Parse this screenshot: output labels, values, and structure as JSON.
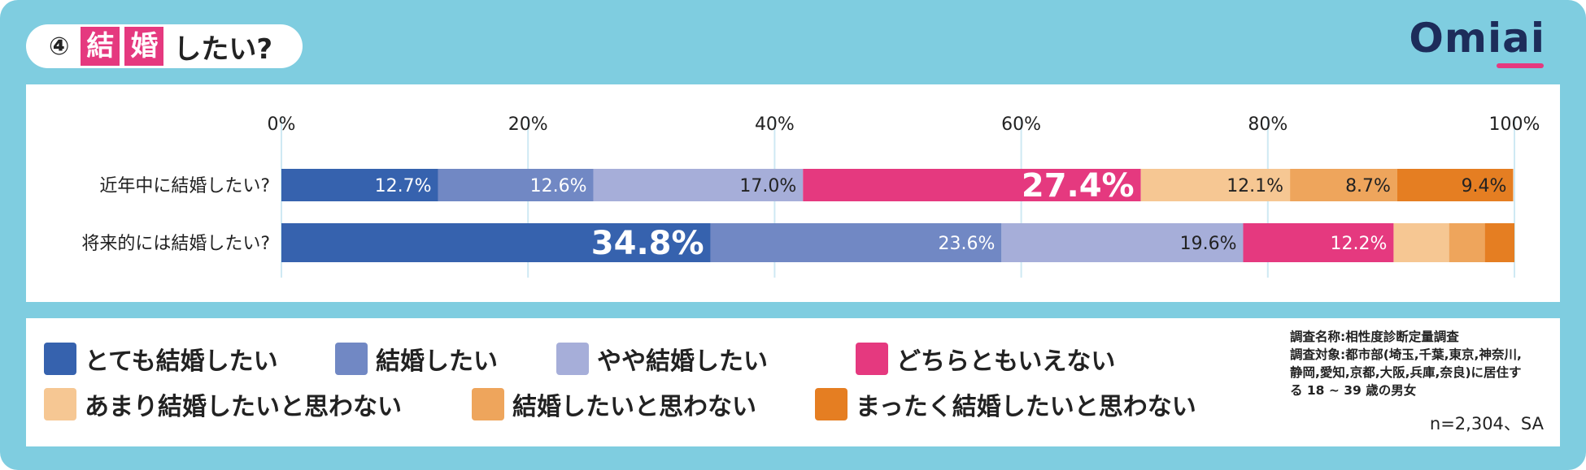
{
  "title": {
    "number": "④",
    "char1": "結",
    "char2": "婚",
    "rest": "したい?"
  },
  "logo": "Omiai",
  "colors": {
    "frame": "#7fcde0",
    "series": [
      "#3662ae",
      "#7188c4",
      "#a6aed9",
      "#e5397f",
      "#f6c793",
      "#eea55c",
      "#e57e22"
    ],
    "grid": "#cfe9f3"
  },
  "chart_data": {
    "type": "bar",
    "orientation": "horizontal-stacked-100",
    "categories": [
      "近年中に結婚したい?",
      "将来的には結婚したい?"
    ],
    "xlim": [
      0,
      100
    ],
    "ticks": [
      "0%",
      "20%",
      "40%",
      "60%",
      "80%",
      "100%"
    ],
    "grid": true,
    "legend_placement": "bottom",
    "series": [
      {
        "name": "とても結婚したい",
        "values": [
          12.7,
          34.8
        ],
        "labels": [
          "12.7%",
          "34.8%"
        ]
      },
      {
        "name": "結婚したい",
        "values": [
          12.6,
          23.6
        ],
        "labels": [
          "12.6%",
          "23.6%"
        ]
      },
      {
        "name": "やや結婚したい",
        "values": [
          17.0,
          19.6
        ],
        "labels": [
          "17.0%",
          "19.6%"
        ]
      },
      {
        "name": "どちらともいえない",
        "values": [
          27.4,
          12.2
        ],
        "labels": [
          "27.4%",
          "12.2%"
        ]
      },
      {
        "name": "あまり結婚したいと思わない",
        "values": [
          12.1,
          4.5
        ],
        "labels": [
          "12.1%",
          ""
        ]
      },
      {
        "name": "結婚したいと思わない",
        "values": [
          8.7,
          2.9
        ],
        "labels": [
          "8.7%",
          ""
        ]
      },
      {
        "name": "まったく結婚したいと思わない",
        "values": [
          9.4,
          2.4
        ],
        "labels": [
          "9.4%",
          ""
        ]
      }
    ]
  },
  "notes": {
    "line1": "調査名称:相性度診断定量調査",
    "line2": "調査対象:都市部(埼玉,千葉,東京,神奈川,",
    "line3": "静岡,愛知,京都,大阪,兵庫,奈良)に居住す",
    "line4": "る 18 ~ 39 歳の男女",
    "sample": "n=2,304、SA"
  }
}
